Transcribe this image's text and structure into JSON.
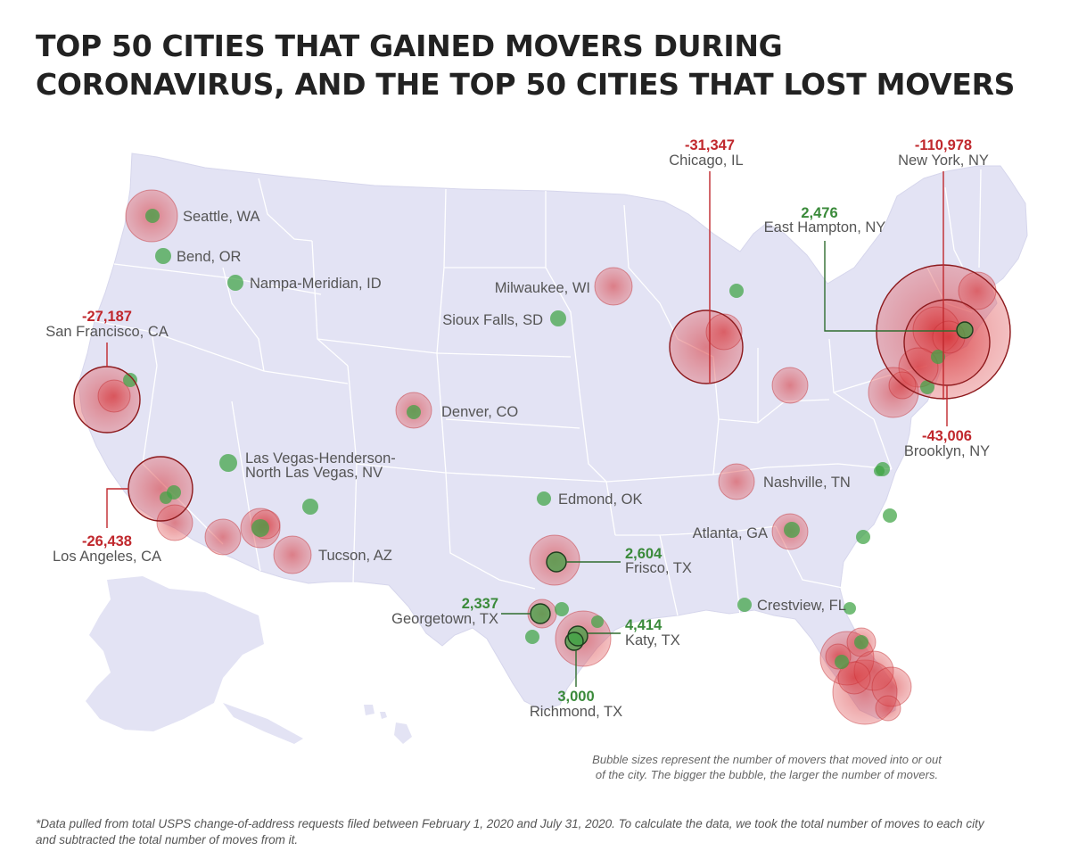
{
  "title": {
    "line1": "TOP 50 CITIES THAT GAINED MOVERS DURING",
    "line2": "CORONAVIRUS, AND THE TOP 50 CITIES THAT LOST MOVERS"
  },
  "note": {
    "line1": "Bubble sizes represent the number of movers that moved into or out",
    "line2": "of the city. The bigger the bubble, the larger the number of movers."
  },
  "footnote": {
    "line1": "*Data pulled from total USPS change-of-address requests filed between February 1, 2020 and July 31, 2020. To calculate the data, we took the total number of moves to each city",
    "line2": "and subtracted the total number of moves from it."
  },
  "colors": {
    "land": "#e3e3f4",
    "borders": "#ffffff",
    "loss": "#d52a2e",
    "gain": "#3ea444",
    "loss_text": "#c0282d",
    "gain_text": "#3a8a3a",
    "name_text": "#555555"
  },
  "labeled_cities": [
    {
      "name": "Seattle, WA"
    },
    {
      "name": "Bend, OR"
    },
    {
      "name": "Nampa-Meridian, ID"
    },
    {
      "name": "San Francisco, CA",
      "value": "-27,187"
    },
    {
      "name": "Denver, CO"
    },
    {
      "name": "Las Vegas-Henderson-"
    },
    {
      "name": "North Las Vegas, NV"
    },
    {
      "name": "Los Angeles, CA",
      "value": "-26,438"
    },
    {
      "name": "Tucson, AZ"
    },
    {
      "name": "Milwaukee, WI"
    },
    {
      "name": "Sioux Falls, SD"
    },
    {
      "name": "Chicago, IL",
      "value": "-31,347"
    },
    {
      "name": "New York, NY",
      "value": "-110,978"
    },
    {
      "name": "East Hampton, NY",
      "value": "2,476"
    },
    {
      "name": "Brooklyn, NY",
      "value": "-43,006"
    },
    {
      "name": "Nashville, TN"
    },
    {
      "name": "Edmond, OK"
    },
    {
      "name": "Atlanta, GA"
    },
    {
      "name": "Frisco, TX",
      "value": "2,604"
    },
    {
      "name": "Crestview, FL"
    },
    {
      "name": "Georgetown, TX",
      "value": "2,337"
    },
    {
      "name": "Katy, TX",
      "value": "4,414"
    },
    {
      "name": "Richmond, TX",
      "value": "3,000"
    }
  ]
}
